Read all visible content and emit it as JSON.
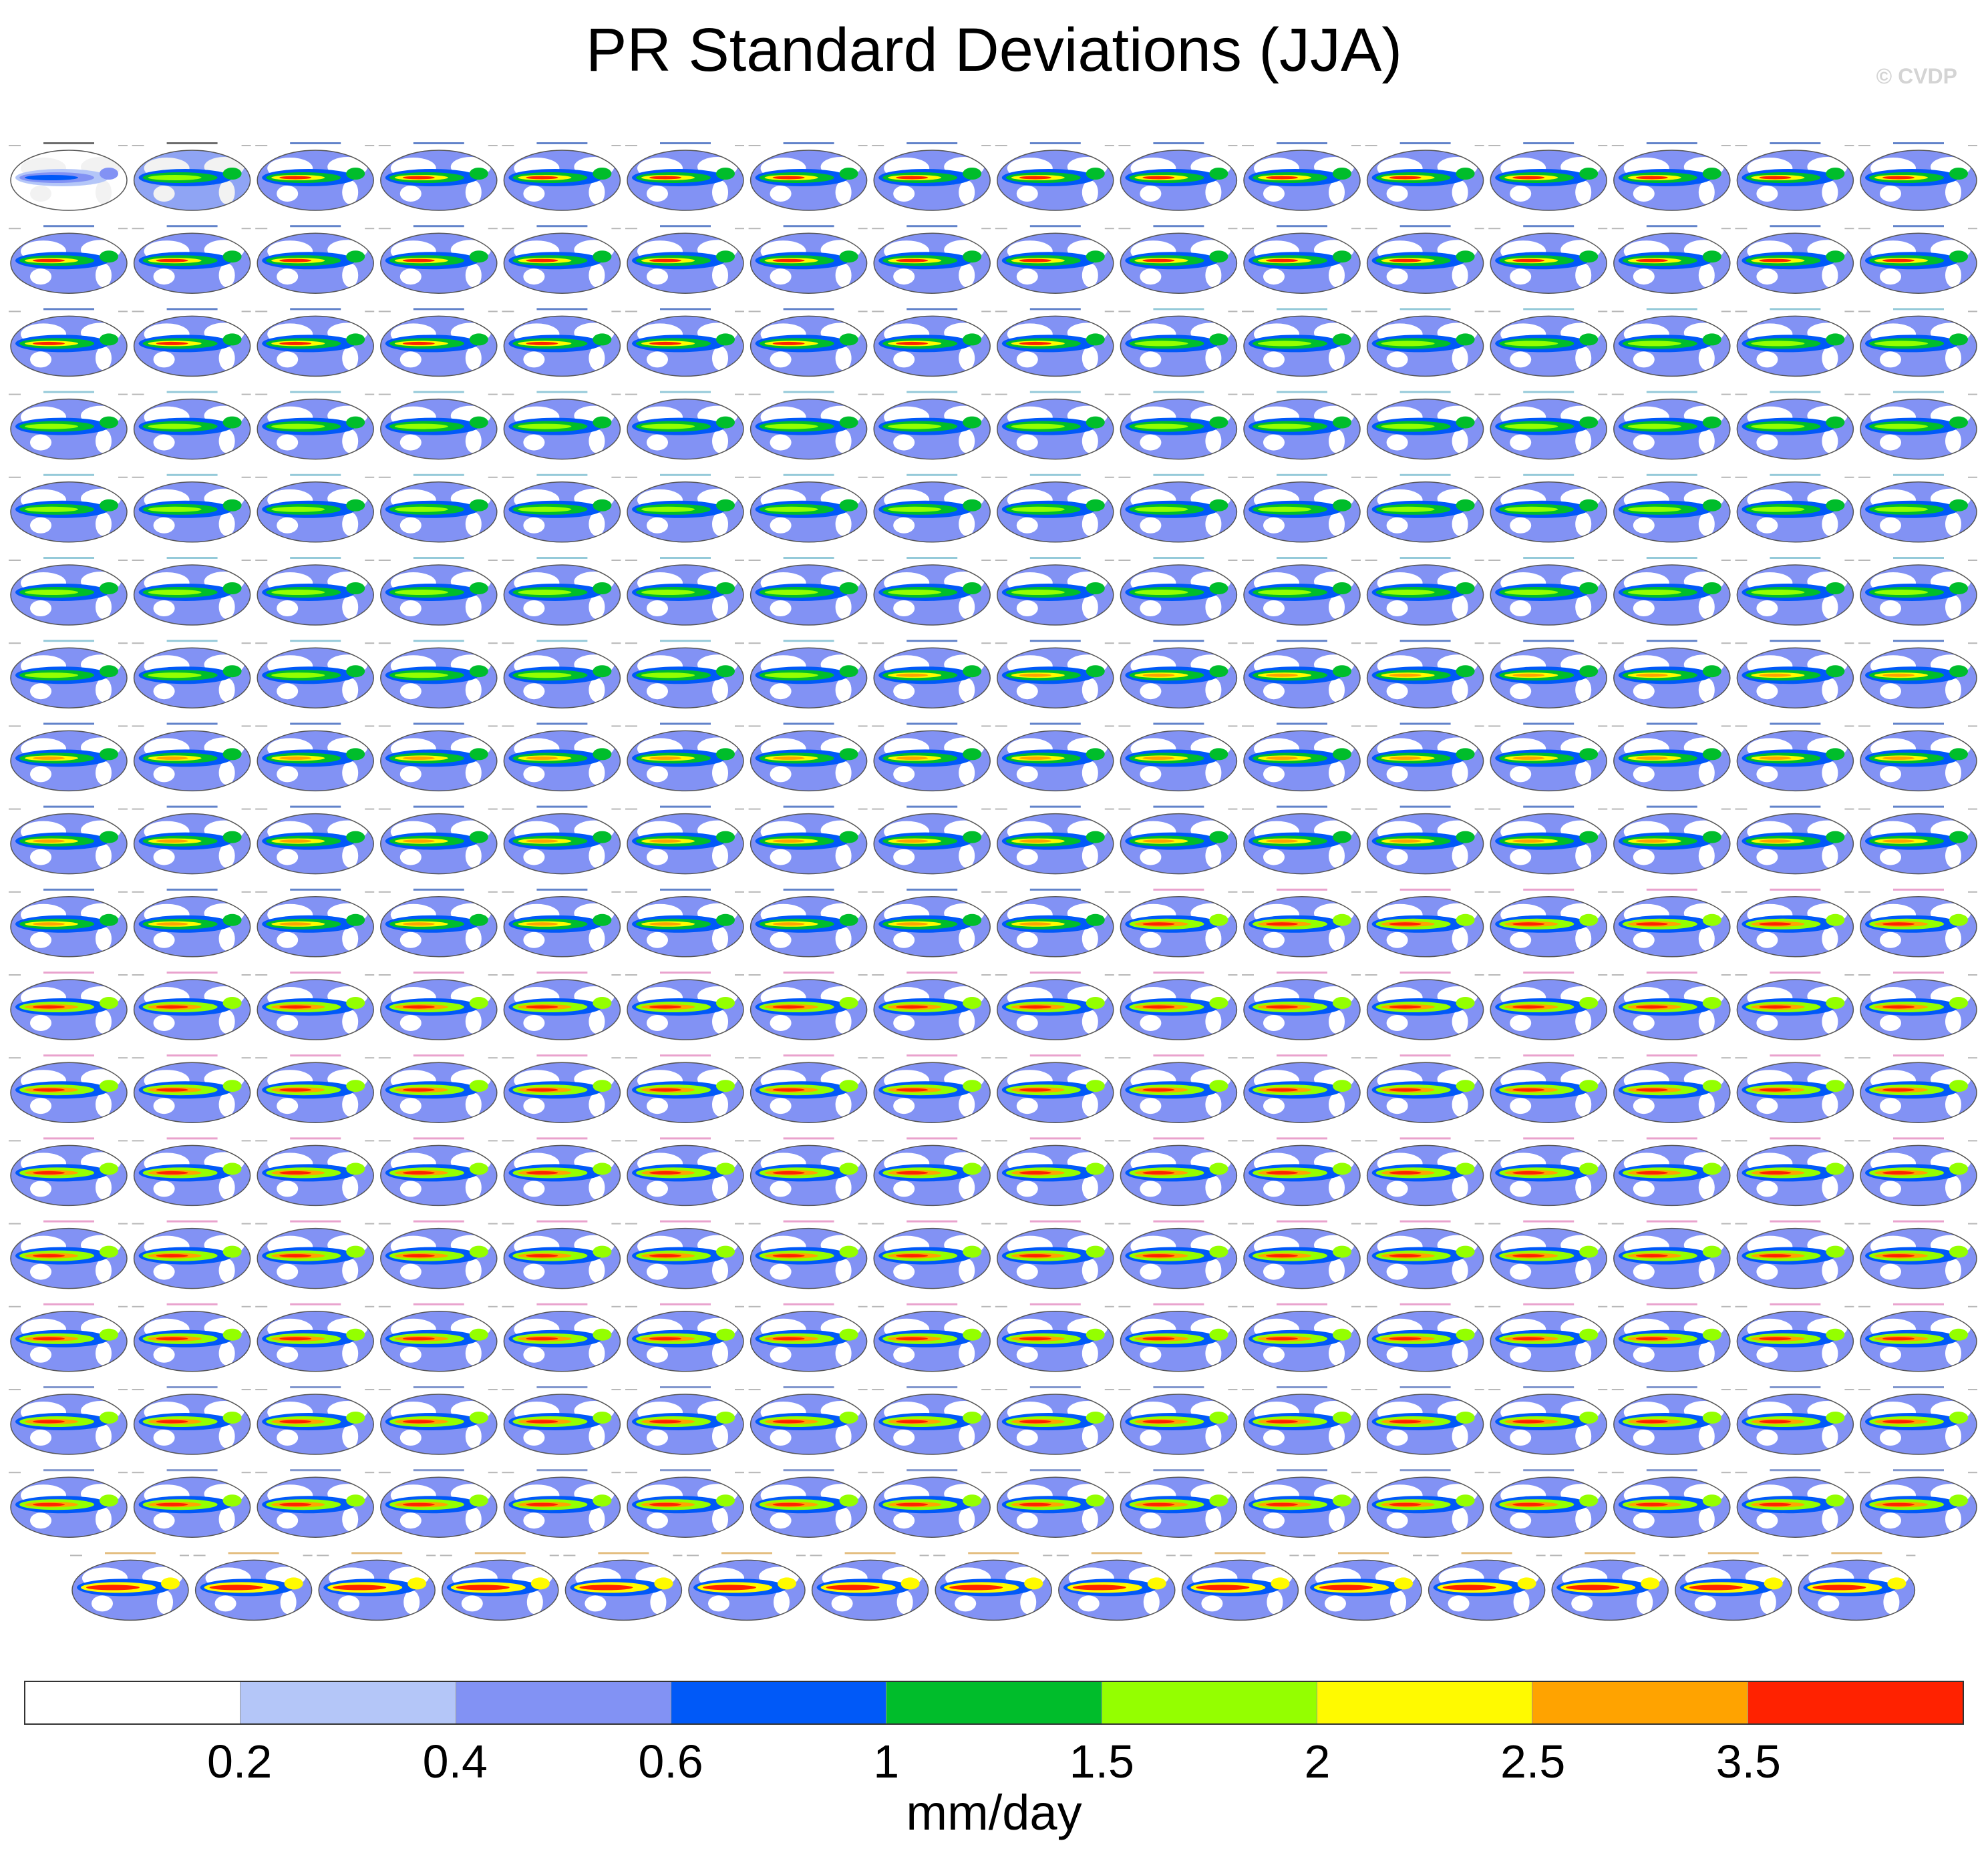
{
  "title": "PR Standard Deviations (JJA)",
  "watermark": "© CVDP",
  "colorbar": {
    "colors": [
      "#ffffff",
      "#b4c6f8",
      "#8292f4",
      "#0059f8",
      "#00bd2b",
      "#94ff00",
      "#fffa00",
      "#ffa300",
      "#ff2200"
    ],
    "tick_labels": [
      "0.2",
      "0.4",
      "0.6",
      "1",
      "1.5",
      "2",
      "2.5",
      "3.5"
    ],
    "units": "mm/day"
  },
  "panels": {
    "full_rows": 17,
    "columns": 16,
    "last_row_count": 15,
    "color_themes": {
      "gpcc": {
        "title_color": "#2d2d2d",
        "land": "#f2f2f2",
        "ocean": "#ffffff",
        "low": "#b4c6f8",
        "mid": "#8292f4",
        "band": "#0059f8"
      },
      "gpcp": {
        "title_color": "#2d2d2d",
        "land": "#f2f2f2",
        "ocean": "#8fa4f4",
        "low": "#0059f8",
        "mid": "#00bd2b",
        "band": "#94ff00"
      },
      "access": {
        "title_color": "#1f4fb4",
        "land": "#ffffff",
        "ocean": "#8292f4",
        "low": "#0059f8",
        "mid": "#00bd2b",
        "band": "#fffa00",
        "core": "#ff2200"
      },
      "canesm": {
        "title_color": "#68b3c9",
        "land": "#ffffff",
        "ocean": "#8292f4",
        "low": "#0059f8",
        "mid": "#00bd2b",
        "band": "#94ff00"
      },
      "cesm1": {
        "title_color": "#1f4fb4",
        "land": "#ffffff",
        "ocean": "#8292f4",
        "low": "#0059f8",
        "mid": "#00bd2b",
        "band": "#fffa00",
        "core": "#ffa300"
      },
      "cesm2": {
        "title_color": "#e07ab8",
        "land": "#ffffff",
        "ocean": "#8292f4",
        "low": "#0059f8",
        "mid": "#94ff00",
        "band": "#ffa300",
        "core": "#ff2200"
      },
      "cesm2b": {
        "title_color": "#4a6ab8",
        "land": "#ffffff",
        "ocean": "#8292f4",
        "low": "#0059f8",
        "mid": "#94ff00",
        "band": "#ffa300",
        "core": "#ff2200"
      },
      "cesm2c": {
        "title_color": "#d8a24a",
        "land": "#ffffff",
        "ocean": "#8292f4",
        "low": "#0059f8",
        "mid": "#fffa00",
        "band": "#ff2200",
        "core": "#ff2200"
      }
    }
  }
}
